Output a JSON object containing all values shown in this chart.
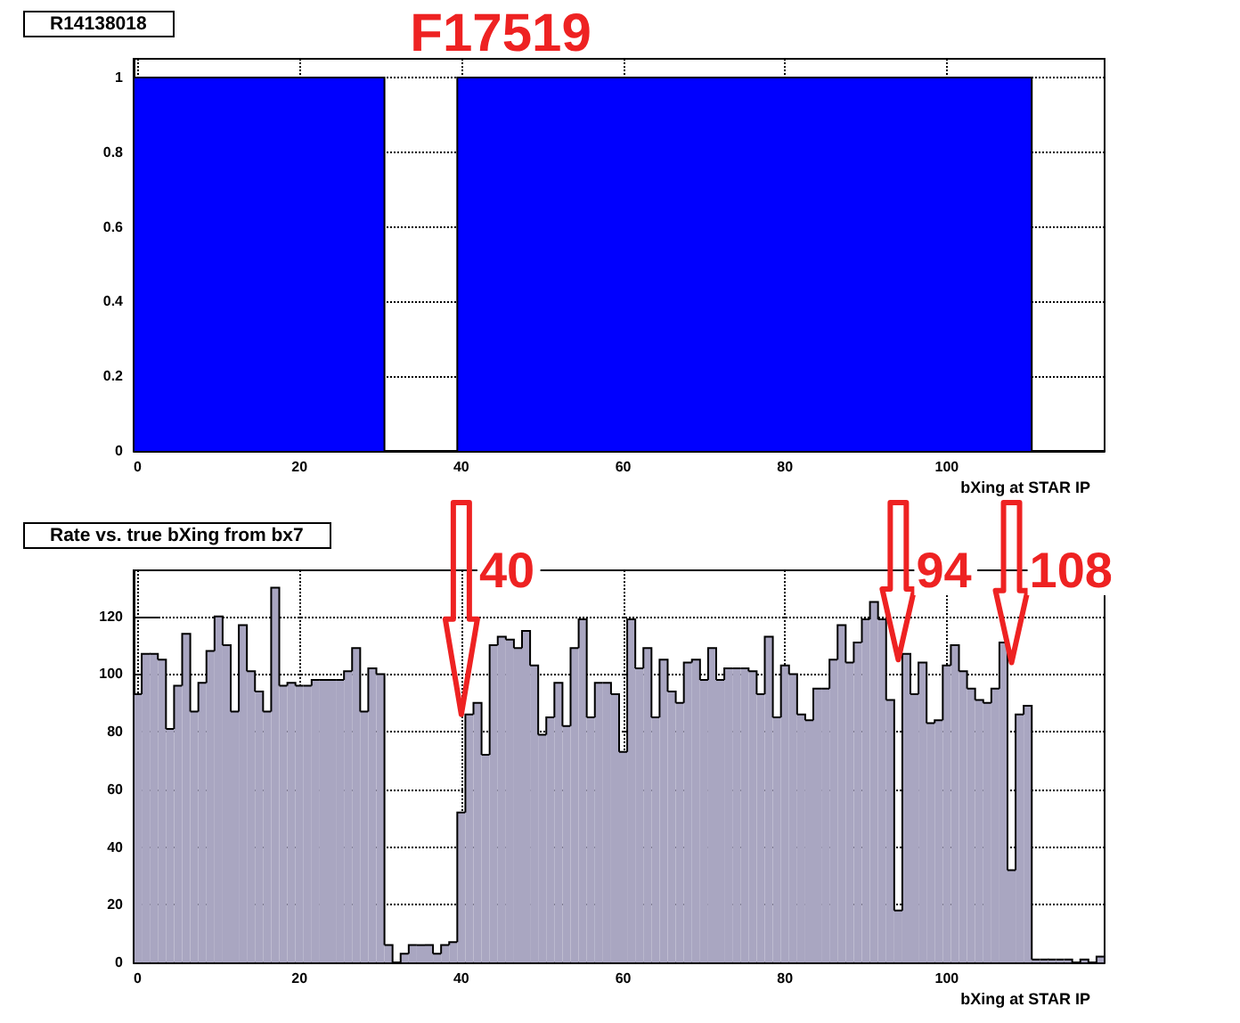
{
  "chart_data": [
    {
      "type": "histogram",
      "title": "R14138018",
      "xlabel": "bXing at STAR IP",
      "bins": [
        -0.5,
        30.5,
        39.5,
        110.5
      ],
      "values": [
        1,
        0,
        1
      ],
      "color": "#0000ff",
      "xlim": [
        -0.5,
        119.5
      ],
      "xticks": [
        0,
        20,
        40,
        60,
        80,
        100
      ],
      "ylim": [
        0,
        1.05
      ],
      "yticks": [
        0,
        0.2,
        0.4,
        0.6,
        0.8,
        1
      ],
      "grid": true,
      "annotations": [
        "F17519"
      ]
    },
    {
      "type": "histogram",
      "title": "Rate vs. true bXing from bx7",
      "xlabel": "bXing at STAR IP",
      "bins": [
        -0.5,
        0.5,
        1.5,
        2.5,
        3.5,
        4.5,
        5.5,
        6.5,
        7.5,
        8.5,
        9.5,
        10.5,
        11.5,
        12.5,
        13.5,
        14.5,
        15.5,
        16.5,
        17.5,
        18.5,
        19.5,
        20.5,
        21.5,
        22.5,
        23.5,
        24.5,
        25.5,
        26.5,
        27.5,
        28.5,
        29.5,
        30.5,
        31.5,
        32.5,
        33.5,
        34.5,
        35.5,
        36.5,
        37.5,
        38.5,
        39.5,
        40.5,
        41.5,
        42.5,
        43.5,
        44.5,
        45.5,
        46.5,
        47.5,
        48.5,
        49.5,
        50.5,
        51.5,
        52.5,
        53.5,
        54.5,
        55.5,
        56.5,
        57.5,
        58.5,
        59.5,
        60.5,
        61.5,
        62.5,
        63.5,
        64.5,
        65.5,
        66.5,
        67.5,
        68.5,
        69.5,
        70.5,
        71.5,
        72.5,
        73.5,
        74.5,
        75.5,
        76.5,
        77.5,
        78.5,
        79.5,
        80.5,
        81.5,
        82.5,
        83.5,
        84.5,
        85.5,
        86.5,
        87.5,
        88.5,
        89.5,
        90.5,
        91.5,
        92.5,
        93.5,
        94.5,
        95.5,
        96.5,
        97.5,
        98.5,
        99.5,
        100.5,
        101.5,
        102.5,
        103.5,
        104.5,
        105.5,
        106.5,
        107.5,
        108.5,
        109.5,
        110.5,
        111.5,
        112.5,
        113.5,
        114.5,
        115.5,
        116.5,
        117.5,
        118.5,
        119.5
      ],
      "values": [
        93,
        107,
        107,
        105,
        81,
        96,
        114,
        87,
        97,
        108,
        120,
        110,
        87,
        117,
        101,
        94,
        87,
        130,
        96,
        97,
        96,
        96,
        98,
        98,
        98,
        98,
        101,
        109,
        87,
        102,
        100,
        6,
        0,
        3,
        6,
        6,
        6,
        3,
        6,
        7,
        52,
        86,
        90,
        72,
        110,
        113,
        112,
        109,
        115,
        103,
        79,
        85,
        97,
        82,
        109,
        119,
        85,
        97,
        97,
        93,
        73,
        119,
        102,
        109,
        85,
        105,
        94,
        90,
        104,
        105,
        98,
        109,
        98,
        102,
        102,
        102,
        101,
        93,
        113,
        85,
        103,
        100,
        86,
        84,
        95,
        95,
        105,
        117,
        104,
        111,
        119,
        125,
        119,
        91,
        18,
        107,
        93,
        104,
        83,
        84,
        103,
        110,
        101,
        95,
        91,
        90,
        95,
        111,
        32,
        86,
        89,
        1,
        1,
        1,
        1,
        1,
        0,
        1,
        0,
        2
      ],
      "color": "#a9a6c1",
      "xlim": [
        -0.5,
        119.5
      ],
      "xticks": [
        0,
        20,
        40,
        60,
        80,
        100
      ],
      "ylim": [
        0,
        136
      ],
      "yticks": [
        0,
        20,
        40,
        60,
        80,
        100,
        120
      ],
      "grid": true,
      "annotations": [
        {
          "text": "40",
          "x": 40,
          "y": 86
        },
        {
          "text": "94",
          "x": 94,
          "y": 105
        },
        {
          "text": "108",
          "x": 108,
          "y": 104
        }
      ]
    }
  ]
}
